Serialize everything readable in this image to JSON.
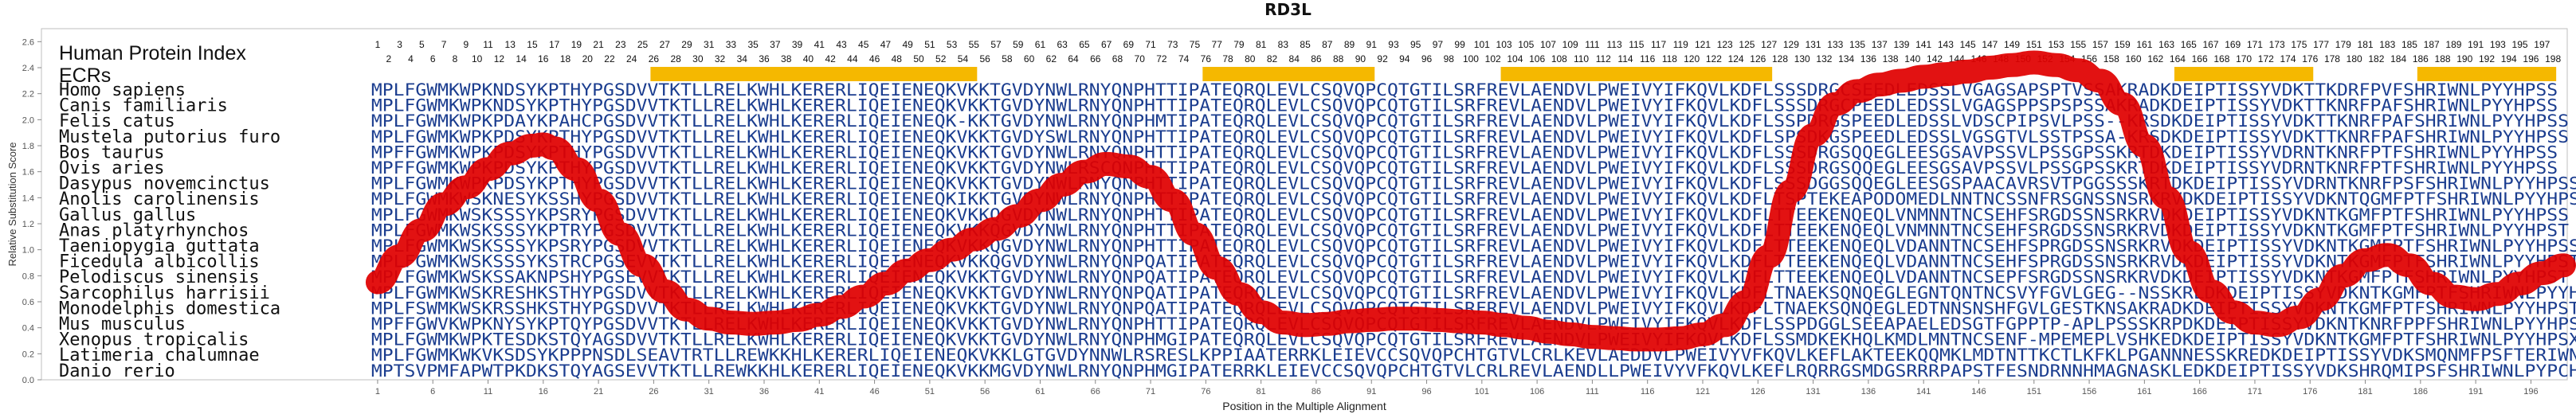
{
  "chart_data": {
    "type": "line",
    "title": "RD3L",
    "xlabel": "Position in the Multiple Alignment",
    "ylabel": "Relative Substitution Score",
    "xlim": [
      0,
      199
    ],
    "ylim": [
      0,
      2.7
    ],
    "yticks": [
      "0.0",
      "0.2",
      "0.4",
      "0.6",
      "0.8",
      "1.0",
      "1.2",
      "1.4",
      "1.6",
      "1.8",
      "2.0",
      "2.2",
      "2.4",
      "2.6"
    ],
    "xticks": [
      1,
      6,
      11,
      16,
      21,
      26,
      31,
      36,
      41,
      46,
      51,
      56,
      61,
      66,
      71,
      76,
      81,
      86,
      91,
      96,
      101,
      106,
      111,
      116,
      121,
      126,
      131,
      136,
      141,
      146,
      151,
      156,
      161,
      166,
      171,
      176,
      181,
      186,
      191,
      196
    ],
    "index_label": "Human Protein Index",
    "ecr_label": "ECRs",
    "human_index_odd": [
      1,
      3,
      5,
      7,
      9,
      11,
      13,
      15,
      17,
      19,
      21,
      23,
      25,
      27,
      29,
      31,
      33,
      35,
      37,
      39,
      41,
      43,
      45,
      47,
      49,
      51,
      53,
      55,
      57,
      59,
      61,
      63,
      65,
      67,
      69,
      71,
      73,
      75,
      77,
      79,
      81,
      83,
      85,
      87,
      89,
      91,
      93,
      95,
      97,
      99,
      101,
      103,
      105,
      107,
      109,
      111,
      113,
      115,
      117,
      119,
      121,
      123,
      125,
      127,
      129,
      131,
      133,
      135,
      137,
      139,
      141,
      143,
      145,
      147,
      149,
      151,
      153,
      155,
      157,
      159,
      161,
      163,
      165,
      167,
      169,
      171,
      173,
      175,
      177,
      179,
      181,
      183,
      185,
      187,
      189,
      191,
      193,
      195,
      197
    ],
    "human_index_even": [
      2,
      4,
      6,
      8,
      10,
      12,
      14,
      16,
      18,
      20,
      22,
      24,
      26,
      28,
      30,
      32,
      34,
      36,
      38,
      40,
      42,
      44,
      46,
      48,
      50,
      52,
      54,
      56,
      58,
      60,
      62,
      64,
      66,
      68,
      70,
      72,
      74,
      76,
      78,
      80,
      82,
      84,
      86,
      88,
      90,
      92,
      94,
      96,
      98,
      100,
      102,
      104,
      106,
      108,
      110,
      112,
      114,
      116,
      118,
      120,
      122,
      124,
      126,
      128,
      130,
      132,
      134,
      136,
      138,
      140,
      142,
      144,
      146,
      148,
      150,
      152,
      154,
      156,
      158,
      160,
      162,
      164,
      166,
      168,
      170,
      172,
      174,
      176,
      178,
      180,
      182,
      184,
      186,
      188,
      190,
      192,
      194,
      196,
      198
    ],
    "ecr_regions": [
      [
        26,
        55
      ],
      [
        76,
        91
      ],
      [
        103,
        127
      ],
      [
        164,
        176
      ],
      [
        186,
        198
      ]
    ],
    "species": [
      "Homo sapiens",
      "Canis familiaris",
      "Felis catus",
      "Mustela putorius furo",
      "Bos taurus",
      "Ovis aries",
      "Dasypus novemcinctus",
      "Anolis carolinensis",
      "Gallus gallus",
      "Anas platyrhynchos",
      "Taeniopygia guttata",
      "Ficedula albicollis",
      "Pelodiscus sinensis",
      "Sarcophilus harrisii",
      "Monodelphis domestica",
      "Mus musculus",
      "Xenopus tropicalis",
      "Latimeria chalumnae",
      "Danio rerio"
    ],
    "sequences": [
      "MPLFGWMKWPKNDSYKPTHYPGSDVVTKTLLREL KWHLKERERLIQEIENEQKVKKTGVDYNWLRNYQNPHTTIPATEQRQLEVLCSQVQPCQTGTILSRFREVLAENDVLPWEIVYIFKQVLKDFLSSSDRGCSEEDLEDSSLVGAGSAPSPTVSSAKRADKDEIPTISSYVDKTTKDRFPVFSHRIWNLPYYHPSS",
      "MPLFGWMKWPKNDSYKPTHYPGSDVVTKTLLRELKWHLKERERLIQEIENEQKVKKTGVDYNWLRNYQNPHTTIPATEQRQLEVLCSQVQPCQTGTILSRFREVLAENDVLPWEIVYIFKQVLKDFLSSSDRGCPEEDLEDSSLVGAGSPPSPSPSSAKRADKDEIPTISSYVDKTTKNRFPAFSHRIWNLPYYHPSS",
      "MPLFGWMKWPKPDAYKPAHCPGSDVVTKTLLRELKWHLKERERLIQEIENEQK-KKTGVDYNWLRNYQNPHMTIPATEQRQLEVLCSQVQPCQTGTILSRFREVLAENDVLPWEIVYIFKQVLKDFLSSPDRGSPEEDLEDSSLVDSCPIPSVLPSS--KRSDKDEIPTISSYVDKTTKNRFPAFSHRIWNLPYYHPSS",
      "MPLFGWMKWPKPDSYKPTHYPGSDVVTKTLLRELKWHLKERERLIQEIENEQKVKKTGVDYSWLRNYQNPHTTIPATEQRQLEVLCSQVQPCQTGTILSRFREVLAENDVLPWEIVYIFKQVLKDFLSPSDKGSPEEDLEDSSLVGSGTVLSSTPSSA-KRSDKDEIPTISSYVDKTTKNRFPAFSHRIWNLPYYHPSS",
      "MPFFGWMKWPKPDSYKPTHYPGSDVVTKTLLRELKWHLKERERLIQEIENEQKVKKTGVDYNWLRNYQNPHTTIPATEQRQLEVLCSQVQPCQTGTILSRFREVLAENDVLPWEIVYIFKQVLKDFLSSSDRGSQQEGLEESGSAVPSSVLPSSGPSSKRTDKDEIPTISSYVDRNTKNRFPTFSHRIWNLPYYHPSS",
      "MPFFGWMKWPKPDSYKPTHYPGSDVVTKTLLRELKWHLKERERLIQEIENEQKVKKTGVDYNWLRSCQNPHTTIPATEQRQLEVLCSQVQPCQTGTILSRFREVLAENDVLPWEIVYIFKQVLKDFLSSSDRGSQQEGLEESGSAVPSSVLPSSGPSSKRTDKDEIPTISSYVDRNTKNRFPTFSHRIWNLPYYHPSS",
      "MPLFGWMKWPKPDSYKPTHYPGSDVVTKTLLRELKWHLKERERLIQEIENEQKVKKTGVDYNWLRNYQNPHTTIPATEQRQLEVLCSQVQPCQTGTILSRFREVLAENDVLPWEIVYIFKQVLKDFLSSSDGGSQQEGLEESGSPAACAVRSVTPGGSSSKRTDKDEIPTISSYVDRNTKNRFPSFSHRIWNLPYYHPSS",
      "MPLFGWMKWSKNESYKSSHYPGSDVVTKTLLRELKWHLKERERLIQEIENEQKIKKTGVDYNWLRNYQNPHTTIPATEQRQLEVLCSQVQPCQTGTILSRFREVLAENDVLPWEIVYIFKQVLKDFLTSPTEKEAPODOMEDLNNTNCSSNFRSGNSSNSRKRVDKDEIPTISSYVDKNTQGMFPTFSHRIWNLPYYHPSS",
      "MPLFGWMKWSKSSSYKPSRYPGSDVVTKTLLRELKWHLKERERLIQEIENEQKVKKQGVDYNWLRNYQNPHTTIPATEQRQLEVLCSQVQPCQTGTILSRFREVLAENDVLPWEIVYIFKQVLKDFLTTEEKENQEQLVNMNNTNCSEHFSRGDSSNSRKRVDKDEIPTISSYVDKNTKGMFPTFSHRIWNLPYYHPSS",
      "MPLFGWMKWSKSSSYKPTRYPGSDVVTKTLLRELKWHLKERERLIQEIENEQKVKKQGVDYNWLRNYQNPHTTIPATEQRQLEVLCSQVQPCQTGTILSRFREVLAENDVLPWEIVYIFKQVLKDFLTTEEKENQEQLVNMNNTNCSEHFSRGDSSNSRKRVDKDEIPTISSYVDKNTKGMFPTFSHRIWNLPYYHPST",
      "MPLFGWMKWSKSSSYKPSRYPGSDVVTKTLLRELKWHLKERERLIQEIENEQKVKKQGVDYNWLRNYQNPHTTIPATEQRQLEVLCSQVQPCQTGTILSRFREVLAENDVLPWEIVYIFKQVLKDFLTTEEKENQEQLVDANNTNCSEHFSPRGDSSNSRKRVDKDEIPTISSYVDKNTKGMFPTFSHRIWNLPYYHPSS",
      "MPLFGWMKWSKSSSYKSTRCPGSEVVTKTLLRELKWHLKERERLIQEIENEQKVKKQGVDYNWLRNYQNPQATIPATEQRQLEVLCSQVQPCQTGTILSRFREVLAENDVLPWEIVYIFKQVLKDFLTTEEKENQEQLVDANNTNCSEHFSPRGDSSNSRKRVDKDEIPTISSYVDKNTKGMFPTFSHRIWNLPYYHPST",
      "MPLFGWMKWSKSSAKNPSHYPGSEVVTKTLLRELKWHLKERERLIQEIENEQKVKKTGVDYNWLRNYQNPQATIPATEQRQLEVLCSQVQPCQTGTILSRFREVLAENDVLPWEIVYIFKQVLKDFLTTEEKENQEQLVDANNTNCSEPFSRGDSSNSRKRVDKDEIPTISSYVDKNTKGMFPTFSHRIWNLPYYHPST",
      "MPLFGWMKWSKRESHKSTHYPGSDVVTKTLLRELKWHLKERERLIQEIENEQKVKKTGVDYNWLRNYQNPQATIPATEQRQLEVLCSQVQPCQTGTILSRFREVLAENDVLPWEIVYIFKQVLKDFLTNAEKSQNQEGLEGNTQNTNCSVYFGVLGEG--NSSKRLDKDEIPTISSYVDKNTKGMFPTFSHRIWNLPYYHPST",
      "MPLFSWMKWSKRSSHKSTHYPGSDVVTKTLLRELKWHLKERERLIQEIENEQKVKKTGVDYNWLRNYQNPQATIPATEQRQLEVLCSQVQPCQTGTILSRFREVLAENDVLPWEIVYIFKQVLKDFLTNAEKSQNQEGLEDTNNSNSHFGVLGESTKNSAKRADKDEIPTISSYVDKNTKGMFPTFSHRIWNLPYYHPST",
      "MPFFGWVKWPKNYSYKPTQYPGSDVVTKTLLRELKWHLKERERLIQEIENEQKVKKTGVDYNWLRNYQNPHTTIPATEQRQLEVLCSQVQPCQTGTILSRFREVLAENDVLPWEIVYIFKQVLKDFLSSPDGGLSEEAPAELEDSGTFGPPTP-APLPSSSKRPDKDEIPTISSYVDKNTKNRFPPFSHRIWNLPYYHPSS",
      "MPLFGWMKWPKTESDKSTQYAGSDVVTKTLLRELKWHLKERERLIQEIENEQKVKKTGVDYNWLRNYQNPHMGIPATEQRQLEVLCSQVQPCQTGTILSRFREVLAENDVLPWEIVYIFKQVLKDFLSSMDKEKHQLKMDLMNTNCSENF-MPEMEPLVSHKEDKDEIPTISSYVDKNTKGMFPTFSHRIWNLPYYHPSX",
      "MPLFGWMKWKVKSDSYKPPPNSDLSEAVTRTLLREWKKHLKERERLIQEIENEQKVKKLGTGVDYNNWLRSRESLKPPIAATERRKLEIEVCCSQVQPCHTGTVLCRL KEVLAEDDVLPWEIVYVFKQVLKEFLAKTEEKQQMKLMDTNTTKCTLKFKLPGANNNESSKREDKDEIPTISSYVDKSMQNMFPSFTERIWNLPYY----",
      "MPTSVPMFAPWTPKDKSTQYAGSEVVTKTLLREWKKHLKERERLIQEIENEQKVKKMGVDYNWLRNYQNPHMGIPATERRKLEIEVCCSQVQPCHTGTVLCRLREVLAENDLLPWEIVYVFKQVLKEFLRQRRGSMDGSRRRPAPSTFESNDRNNHMAGNASKLEDKDEIPTISSYVDKSHRQMIPSFSHRIWNLPYPCHPFA"
    ],
    "series": [
      {
        "x": [
          1,
          3,
          5,
          7,
          9,
          11,
          13,
          15,
          16,
          17,
          19,
          21,
          23,
          25,
          27,
          29,
          31,
          33,
          35,
          37,
          39,
          41,
          43,
          45,
          47,
          49,
          51,
          53,
          55,
          57,
          59,
          61,
          63,
          65,
          67,
          69,
          71,
          73,
          75,
          77,
          79,
          81,
          83,
          85,
          87,
          89,
          91,
          93,
          95,
          97,
          99,
          101,
          103,
          105,
          107,
          109,
          111,
          113,
          115,
          117,
          119,
          121,
          123,
          125,
          127,
          129,
          131,
          133,
          135,
          137,
          139,
          141,
          143,
          145,
          147,
          149,
          151,
          153,
          155,
          157,
          159,
          161,
          163,
          165,
          167,
          169,
          171,
          173,
          175,
          177,
          179,
          181,
          183,
          185,
          187,
          189,
          191,
          193,
          195,
          197,
          199
        ],
        "y": [
          0.75,
          0.95,
          1.15,
          1.35,
          1.48,
          1.62,
          1.74,
          1.8,
          1.81,
          1.78,
          1.62,
          1.38,
          1.12,
          0.88,
          0.68,
          0.54,
          0.47,
          0.44,
          0.43,
          0.44,
          0.46,
          0.5,
          0.56,
          0.64,
          0.74,
          0.84,
          0.92,
          1.0,
          1.08,
          1.16,
          1.26,
          1.38,
          1.5,
          1.6,
          1.66,
          1.64,
          1.56,
          1.38,
          1.12,
          0.86,
          0.66,
          0.52,
          0.44,
          0.42,
          0.43,
          0.45,
          0.46,
          0.47,
          0.47,
          0.46,
          0.45,
          0.44,
          0.42,
          0.4,
          0.37,
          0.35,
          0.33,
          0.32,
          0.31,
          0.31,
          0.32,
          0.35,
          0.42,
          0.6,
          0.95,
          1.45,
          1.88,
          2.12,
          2.22,
          2.27,
          2.3,
          2.33,
          2.35,
          2.37,
          2.4,
          2.42,
          2.44,
          2.42,
          2.38,
          2.3,
          2.12,
          1.8,
          1.4,
          0.98,
          0.68,
          0.52,
          0.44,
          0.42,
          0.48,
          0.62,
          0.8,
          0.92,
          0.96,
          0.88,
          0.74,
          0.64,
          0.62,
          0.66,
          0.74,
          0.82,
          0.88
        ]
      }
    ]
  }
}
